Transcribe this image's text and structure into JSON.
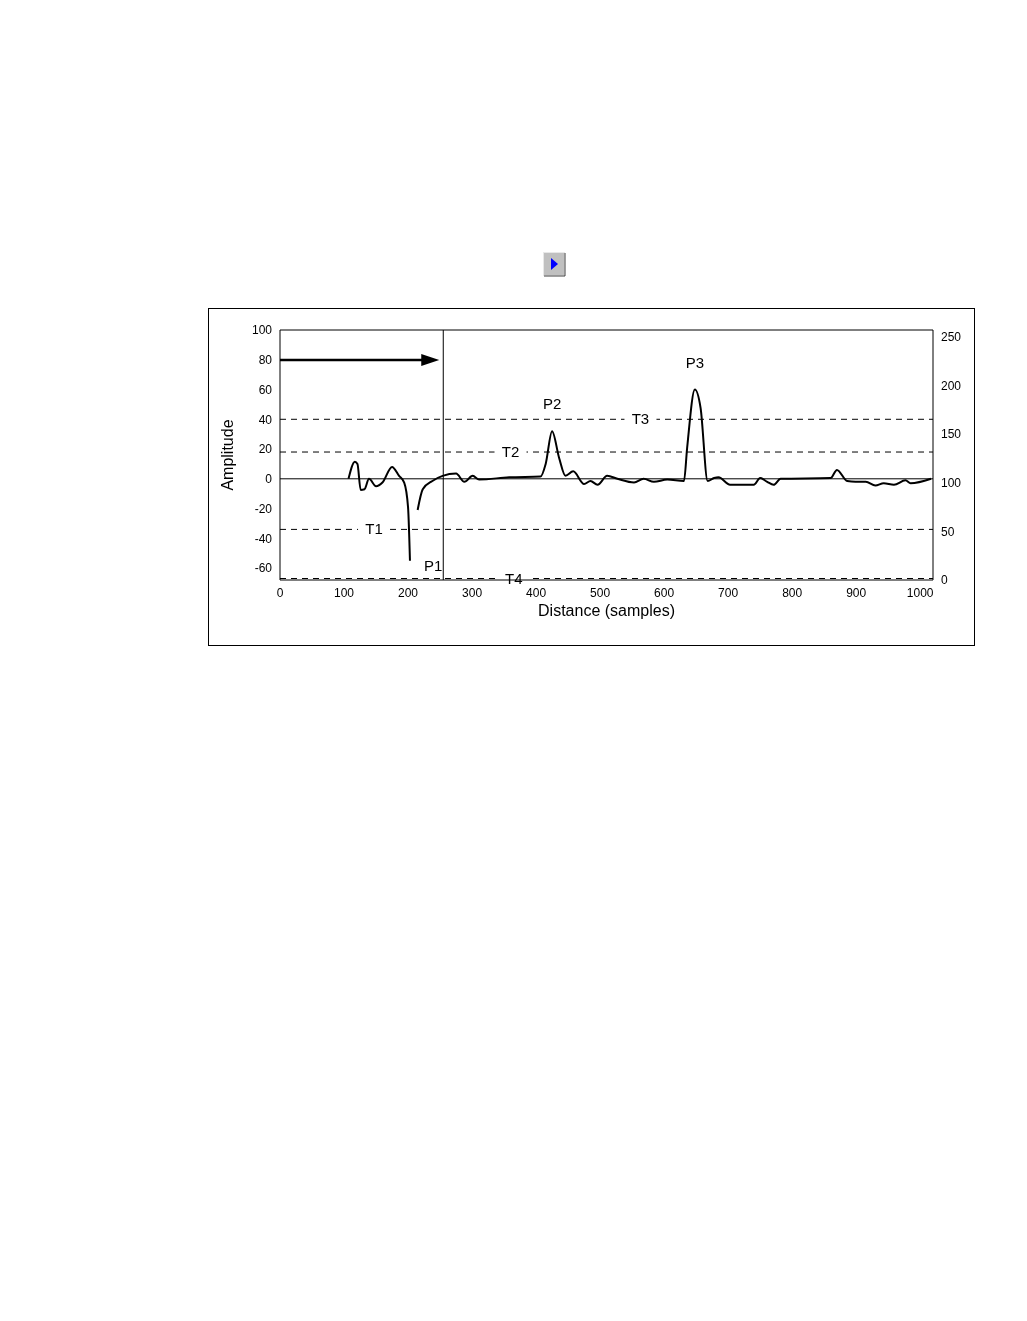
{
  "chart_data": {
    "type": "line",
    "xlabel": "Distance (samples)",
    "ylabel": "Amplitude",
    "xlim": [
      0,
      1020
    ],
    "xticks": [
      0,
      100,
      200,
      300,
      400,
      500,
      600,
      700,
      800,
      900,
      1000
    ],
    "ylim": [
      -68,
      100
    ],
    "yticks": [
      -60,
      -40,
      -20,
      0,
      20,
      40,
      60,
      80,
      100
    ],
    "y2lim": [
      0,
      257
    ],
    "y2ticks": [
      0,
      50,
      100,
      150,
      200,
      250
    ],
    "marker": "none",
    "line_style": "solid",
    "series": [
      {
        "color": "#000000",
        "x": [
          107,
          117,
          121,
          126,
          132,
          139,
          150,
          160,
          175,
          186,
          194,
          200,
          203,
          206,
          211,
          215,
          223,
          238,
          254,
          275,
          288,
          301,
          311,
          358,
          407,
          415,
          425,
          436,
          446,
          458,
          475,
          485,
          496,
          511,
          527,
          553,
          568,
          584,
          605,
          631,
          636,
          648,
          657,
          668,
          678,
          685,
          703,
          740,
          750,
          761,
          771,
          782,
          860,
          870,
          886,
          899,
          915,
          930,
          943,
          959,
          977,
          985,
          1017
        ],
        "values": [
          0,
          11.5,
          10,
          -7.5,
          -7,
          0,
          -5,
          -2.5,
          8,
          2,
          -2.5,
          -19,
          -55,
          null,
          null,
          -21,
          -7,
          -1.5,
          2,
          3.5,
          -2,
          2,
          -0.5,
          1,
          1.5,
          10,
          32,
          14,
          2,
          5,
          -3.5,
          -1.5,
          -4,
          2,
          0,
          -2.5,
          0,
          -2,
          -0.5,
          -1.5,
          21,
          60,
          47.5,
          -1.5,
          0.5,
          1,
          -4,
          -4,
          0.5,
          -2,
          -4,
          0,
          0.5,
          6,
          -1.5,
          -2,
          -2,
          -4.5,
          -3,
          -4,
          -1,
          -3,
          0
        ]
      }
    ],
    "ref_lines": [
      {
        "axis": "y",
        "value": 0,
        "line_style": "solid",
        "color": "#000000"
      },
      {
        "axis": "x",
        "value": 255,
        "line_style": "solid",
        "color": "#000000"
      },
      {
        "axis": "y",
        "value": -34,
        "label": "T1",
        "line_style": "dashed",
        "color": "#000000"
      },
      {
        "axis": "y",
        "value": 18,
        "label": "T2",
        "line_style": "dashed",
        "color": "#000000"
      },
      {
        "axis": "y",
        "value": 40,
        "label": "T3",
        "line_style": "dashed",
        "color": "#000000"
      },
      {
        "axis": "y",
        "value": -67,
        "label": "T4",
        "line_style": "dashed",
        "color": "#000000"
      }
    ],
    "annotations": [
      {
        "text": "P1",
        "x": 206,
        "y": -68
      },
      {
        "text": "P2",
        "x": 425,
        "y": 32
      },
      {
        "text": "P3",
        "x": 648,
        "y": 60
      }
    ]
  }
}
